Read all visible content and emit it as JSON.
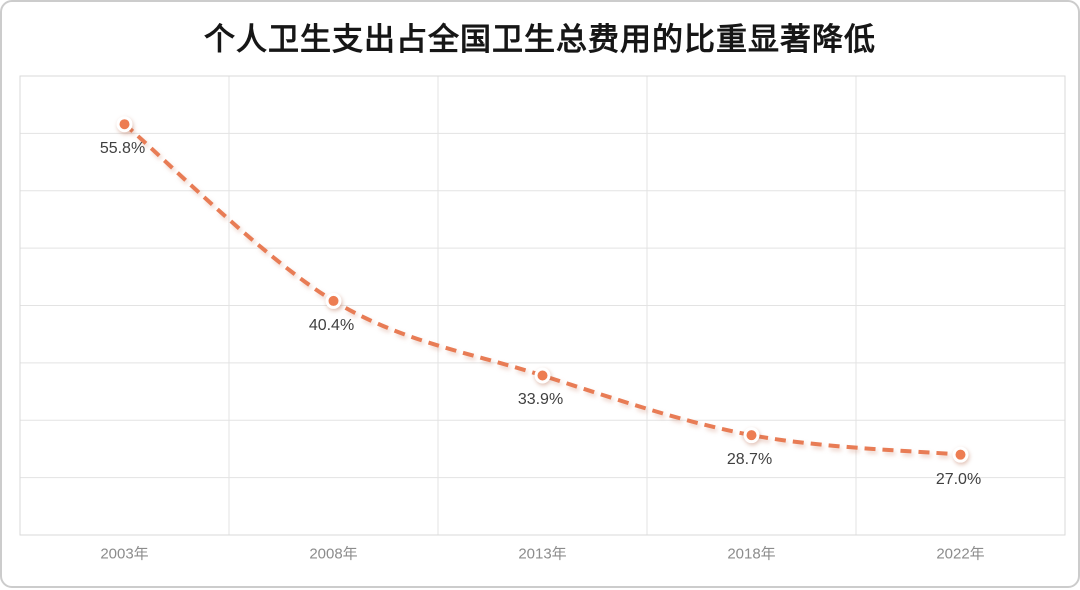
{
  "title": "个人卫生支出占全国卫生总费用的比重显著降低",
  "colors": {
    "line": "#E87C55",
    "marker_fill": "#ED7D52",
    "marker_ring": "#FFFFFF",
    "data_label": "#404040",
    "axis_label": "#8C8C8C",
    "gridline": "#E3E3E3",
    "plot_border": "#D9D9D9",
    "title_text": "#161616",
    "frame_border": "#CCCCCC"
  },
  "chart_data": {
    "type": "line",
    "line_style": "dashed-smooth",
    "title": "个人卫生支出占全国卫生总费用的比重显著降低",
    "categories": [
      "2003年",
      "2008年",
      "2013年",
      "2018年",
      "2022年"
    ],
    "values": [
      55.8,
      40.4,
      33.9,
      28.7,
      27.0
    ],
    "point_labels": [
      "55.8%",
      "40.4%",
      "33.9%",
      "28.7%",
      "27.0%"
    ],
    "xlabel": "",
    "ylabel": "",
    "ylim": [
      20,
      60
    ],
    "y_step": 5,
    "y_tick_labels_visible": false,
    "grid": true,
    "legend": "none"
  }
}
